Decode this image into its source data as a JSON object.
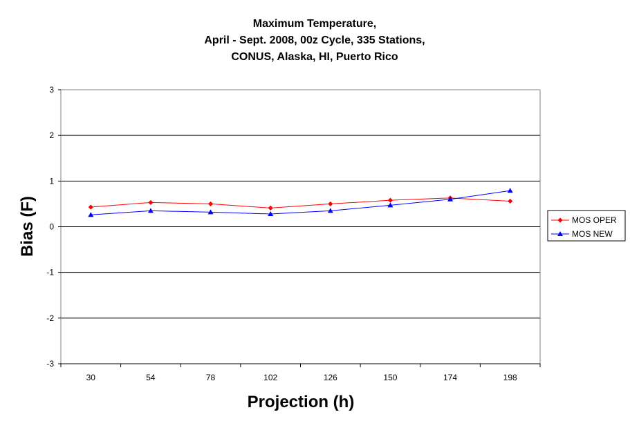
{
  "chart_data": {
    "type": "line",
    "title": [
      "Maximum Temperature,",
      "April - Sept. 2008, 00z Cycle, 335 Stations,",
      "CONUS, Alaska, HI, Puerto Rico"
    ],
    "xlabel": "Projection (h)",
    "ylabel": "Bias (F)",
    "categories": [
      "30",
      "54",
      "78",
      "102",
      "126",
      "150",
      "174",
      "198"
    ],
    "yticks": [
      "3",
      "2",
      "1",
      "0",
      "-1",
      "-2",
      "-3"
    ],
    "ylim": [
      -3,
      3
    ],
    "grid": true,
    "legend_position": "right",
    "series": [
      {
        "name": "MOS OPER",
        "color": "#ff0000",
        "marker": "diamond",
        "values": [
          0.43,
          0.53,
          0.5,
          0.41,
          0.5,
          0.58,
          0.63,
          0.56
        ]
      },
      {
        "name": "MOS NEW",
        "color": "#0000ff",
        "marker": "triangle",
        "values": [
          0.26,
          0.35,
          0.32,
          0.28,
          0.35,
          0.47,
          0.6,
          0.79
        ]
      }
    ]
  }
}
